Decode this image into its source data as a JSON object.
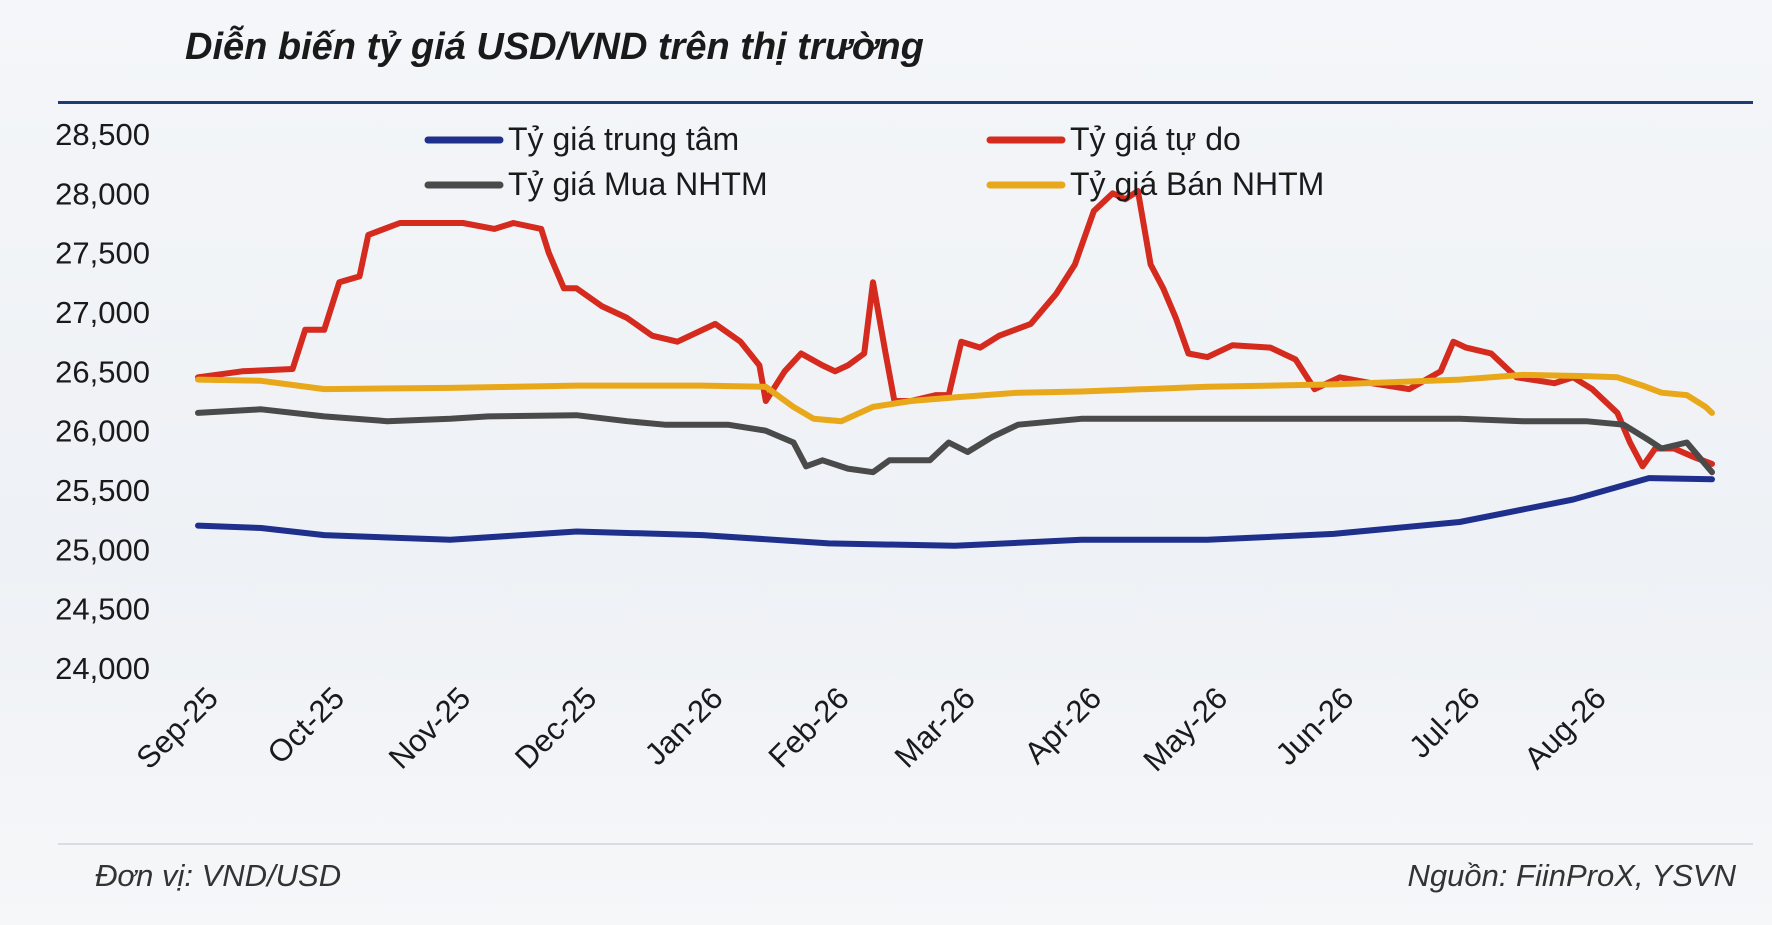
{
  "header": {
    "title": "Diễn biến tỷ giá USD/VND trên thị trường"
  },
  "footer": {
    "unit": "Đơn vị: VND/USD",
    "source": "Nguồn: FiinProX, YSVN"
  },
  "chart_data": {
    "type": "line",
    "title": "Diễn biến tỷ giá USD/VND trên thị trường",
    "xlabel": "",
    "ylabel": "",
    "ylim": [
      24000,
      28500
    ],
    "y_ticks": [
      24000,
      24500,
      25000,
      25500,
      26000,
      26500,
      27000,
      27500,
      28000,
      28500
    ],
    "y_tick_labels": [
      "24,000",
      "24,500",
      "25,000",
      "25,500",
      "26,000",
      "26,500",
      "27,000",
      "27,500",
      "28,000",
      "28,500"
    ],
    "x_tick_labels": [
      "Sep-25",
      "Oct-25",
      "Nov-25",
      "Dec-25",
      "Jan-26",
      "Feb-26",
      "Mar-26",
      "Apr-26",
      "May-26",
      "Jun-26",
      "Jul-26",
      "Aug-26"
    ],
    "x_range": [
      0,
      12
    ],
    "x_unit": "months since Sep-25",
    "grid": false,
    "legend_position": "top",
    "series": [
      {
        "name": "Tỷ giá trung tâm",
        "color": "#1f2f8c",
        "points": [
          [
            0,
            25200
          ],
          [
            0.5,
            25180
          ],
          [
            1,
            25120
          ],
          [
            2,
            25080
          ],
          [
            3,
            25150
          ],
          [
            4,
            25120
          ],
          [
            5,
            25050
          ],
          [
            6,
            25030
          ],
          [
            7,
            25080
          ],
          [
            8,
            25080
          ],
          [
            9,
            25130
          ],
          [
            10,
            25230
          ],
          [
            10.9,
            25420
          ],
          [
            11.5,
            25600
          ],
          [
            12,
            25590
          ]
        ]
      },
      {
        "name": "Tỷ giá tự do",
        "color": "#d52a1e",
        "points": [
          [
            0,
            26450
          ],
          [
            0.35,
            26500
          ],
          [
            0.75,
            26520
          ],
          [
            0.85,
            26850
          ],
          [
            1,
            26850
          ],
          [
            1.12,
            27250
          ],
          [
            1.28,
            27300
          ],
          [
            1.35,
            27650
          ],
          [
            1.6,
            27750
          ],
          [
            2.1,
            27750
          ],
          [
            2.35,
            27700
          ],
          [
            2.5,
            27750
          ],
          [
            2.72,
            27700
          ],
          [
            2.78,
            27500
          ],
          [
            2.9,
            27200
          ],
          [
            3,
            27200
          ],
          [
            3.2,
            27050
          ],
          [
            3.4,
            26950
          ],
          [
            3.6,
            26800
          ],
          [
            3.8,
            26750
          ],
          [
            4.1,
            26900
          ],
          [
            4.3,
            26750
          ],
          [
            4.45,
            26550
          ],
          [
            4.5,
            26250
          ],
          [
            4.65,
            26500
          ],
          [
            4.78,
            26650
          ],
          [
            4.95,
            26550
          ],
          [
            5.05,
            26500
          ],
          [
            5.15,
            26550
          ],
          [
            5.28,
            26650
          ],
          [
            5.35,
            27250
          ],
          [
            5.45,
            26650
          ],
          [
            5.52,
            26250
          ],
          [
            5.65,
            26250
          ],
          [
            5.85,
            26300
          ],
          [
            5.95,
            26300
          ],
          [
            6.05,
            26750
          ],
          [
            6.2,
            26700
          ],
          [
            6.35,
            26800
          ],
          [
            6.6,
            26900
          ],
          [
            6.8,
            27150
          ],
          [
            6.95,
            27400
          ],
          [
            7.1,
            27850
          ],
          [
            7.25,
            28000
          ],
          [
            7.35,
            27950
          ],
          [
            7.45,
            28020
          ],
          [
            7.55,
            27400
          ],
          [
            7.65,
            27200
          ],
          [
            7.75,
            26950
          ],
          [
            7.85,
            26650
          ],
          [
            8,
            26620
          ],
          [
            8.2,
            26720
          ],
          [
            8.5,
            26700
          ],
          [
            8.7,
            26600
          ],
          [
            8.85,
            26350
          ],
          [
            9.05,
            26450
          ],
          [
            9.3,
            26400
          ],
          [
            9.6,
            26350
          ],
          [
            9.85,
            26500
          ],
          [
            9.95,
            26750
          ],
          [
            10.05,
            26700
          ],
          [
            10.25,
            26650
          ],
          [
            10.45,
            26450
          ],
          [
            10.75,
            26400
          ],
          [
            10.9,
            26450
          ],
          [
            11.05,
            26350
          ],
          [
            11.25,
            26150
          ],
          [
            11.35,
            25900
          ],
          [
            11.45,
            25700
          ],
          [
            11.55,
            25850
          ],
          [
            11.7,
            25850
          ],
          [
            11.85,
            25780
          ],
          [
            12,
            25720
          ]
        ]
      },
      {
        "name": "Tỷ giá Mua NHTM",
        "color": "#4a4a4a",
        "points": [
          [
            0,
            26150
          ],
          [
            0.5,
            26180
          ],
          [
            1,
            26120
          ],
          [
            1.5,
            26080
          ],
          [
            2,
            26100
          ],
          [
            2.3,
            26120
          ],
          [
            3,
            26130
          ],
          [
            3.4,
            26080
          ],
          [
            3.7,
            26050
          ],
          [
            4.2,
            26050
          ],
          [
            4.5,
            26000
          ],
          [
            4.72,
            25900
          ],
          [
            4.82,
            25700
          ],
          [
            4.95,
            25750
          ],
          [
            5.15,
            25680
          ],
          [
            5.35,
            25650
          ],
          [
            5.48,
            25750
          ],
          [
            5.8,
            25750
          ],
          [
            5.95,
            25900
          ],
          [
            6.1,
            25820
          ],
          [
            6.3,
            25950
          ],
          [
            6.5,
            26050
          ],
          [
            7,
            26100
          ],
          [
            8,
            26100
          ],
          [
            9,
            26100
          ],
          [
            10,
            26100
          ],
          [
            10.5,
            26080
          ],
          [
            11,
            26080
          ],
          [
            11.3,
            26050
          ],
          [
            11.5,
            25920
          ],
          [
            11.6,
            25850
          ],
          [
            11.8,
            25900
          ],
          [
            12,
            25650
          ]
        ]
      },
      {
        "name": "Tỷ giá Bán NHTM",
        "color": "#e8a81a",
        "points": [
          [
            0,
            26430
          ],
          [
            0.5,
            26420
          ],
          [
            1,
            26350
          ],
          [
            2,
            26360
          ],
          [
            3,
            26380
          ],
          [
            4,
            26380
          ],
          [
            4.5,
            26370
          ],
          [
            4.72,
            26200
          ],
          [
            4.88,
            26100
          ],
          [
            5.1,
            26080
          ],
          [
            5.35,
            26200
          ],
          [
            5.65,
            26250
          ],
          [
            6,
            26280
          ],
          [
            6.5,
            26320
          ],
          [
            7,
            26330
          ],
          [
            8,
            26370
          ],
          [
            9,
            26390
          ],
          [
            10,
            26430
          ],
          [
            10.5,
            26470
          ],
          [
            11,
            26460
          ],
          [
            11.25,
            26450
          ],
          [
            11.45,
            26380
          ],
          [
            11.6,
            26320
          ],
          [
            11.8,
            26300
          ],
          [
            11.95,
            26200
          ],
          [
            12,
            26150
          ]
        ]
      }
    ]
  }
}
